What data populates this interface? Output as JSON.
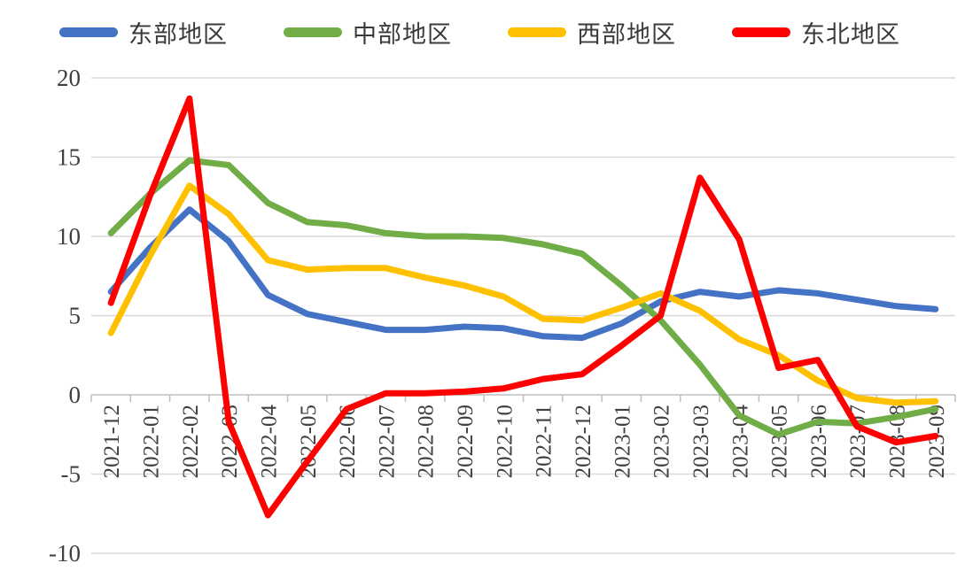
{
  "chart_data": {
    "type": "line",
    "title": "",
    "xlabel": "",
    "ylabel": "",
    "legend_position": "top",
    "grid": true,
    "categories": [
      "2021-12",
      "2022-01",
      "2022-02",
      "2022-03",
      "2022-04",
      "2022-05",
      "2022-06",
      "2022-07",
      "2022-08",
      "2022-09",
      "2022-10",
      "2022-11",
      "2022-12",
      "2023-01",
      "2023-02",
      "2023-03",
      "2023-04",
      "2023-05",
      "2023-06",
      "2023-07",
      "2023-08",
      "2023-09"
    ],
    "series": [
      {
        "name": "东部地区",
        "color": "#4472C4",
        "values": [
          6.5,
          9.3,
          11.7,
          9.7,
          6.3,
          5.1,
          4.6,
          4.1,
          4.1,
          4.3,
          4.2,
          3.7,
          3.6,
          4.5,
          5.9,
          6.5,
          6.2,
          6.6,
          6.4,
          6.0,
          5.6,
          5.4
        ]
      },
      {
        "name": "中部地区",
        "color": "#70AD47",
        "values": [
          10.2,
          12.7,
          14.8,
          14.5,
          12.1,
          10.9,
          10.7,
          10.2,
          10.0,
          10.0,
          9.9,
          9.5,
          8.9,
          6.9,
          4.7,
          1.9,
          -1.3,
          -2.5,
          -1.7,
          -1.8,
          -1.4,
          -0.9
        ]
      },
      {
        "name": "西部地区",
        "color": "#FFC000",
        "values": [
          3.9,
          8.8,
          13.2,
          11.4,
          8.5,
          7.9,
          8.0,
          8.0,
          7.4,
          6.9,
          6.2,
          4.8,
          4.7,
          5.5,
          6.4,
          5.3,
          3.5,
          2.5,
          0.9,
          -0.2,
          -0.5,
          -0.4
        ]
      },
      {
        "name": "东北地区",
        "color": "#FF0000",
        "values": [
          5.8,
          12.6,
          18.7,
          -1.7,
          -7.6,
          -4.2,
          -0.9,
          0.1,
          0.1,
          0.2,
          0.4,
          1.0,
          1.3,
          3.1,
          5.0,
          13.7,
          9.8,
          1.7,
          2.2,
          -2.0,
          -3.0,
          -2.6
        ]
      }
    ],
    "y_axis": {
      "min": -10,
      "max": 20,
      "step": 5,
      "ticks": [
        20,
        15,
        10,
        5,
        0,
        -5,
        -10
      ]
    },
    "style": {
      "gridline_color": "#D9D9D9",
      "axis_color": "#BFBFBF",
      "tick_label_color": "#404040",
      "line_width": 7
    }
  }
}
